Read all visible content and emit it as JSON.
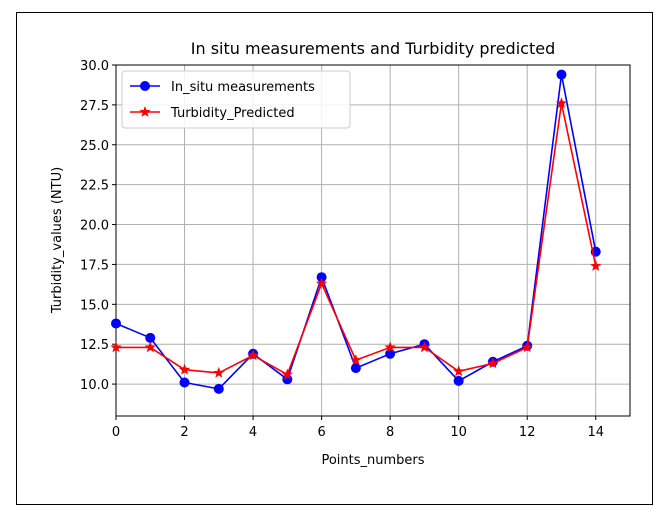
{
  "chart_data": {
    "type": "line",
    "title": "In situ measurements and Turbidity predicted",
    "xlabel": "Points_numbers",
    "ylabel": "Turbidity_values (NTU)",
    "xlim": [
      0,
      15
    ],
    "ylim": [
      8.0,
      30.0
    ],
    "xticks": [
      "0",
      "2",
      "4",
      "6",
      "8",
      "10",
      "12",
      "14"
    ],
    "yticks": [
      "10.0",
      "12.5",
      "15.0",
      "17.5",
      "20.0",
      "22.5",
      "25.0",
      "27.5",
      "30.0"
    ],
    "grid": true,
    "legend_position": "top-left",
    "x": [
      0,
      1,
      2,
      3,
      4,
      5,
      6,
      7,
      8,
      9,
      10,
      11,
      12,
      13,
      14
    ],
    "series": [
      {
        "name": "In_situ measurements",
        "color": "#0000ff",
        "marker": "circle",
        "values": [
          13.8,
          12.9,
          10.1,
          9.7,
          11.9,
          10.3,
          16.7,
          11.0,
          11.9,
          12.5,
          10.2,
          11.4,
          12.4,
          29.4,
          18.3
        ]
      },
      {
        "name": "Turbidity_Predicted",
        "color": "#ff0000",
        "marker": "star",
        "values": [
          12.3,
          12.3,
          10.9,
          10.7,
          11.8,
          10.6,
          16.3,
          11.5,
          12.3,
          12.3,
          10.8,
          11.3,
          12.3,
          27.6,
          17.4
        ]
      }
    ]
  }
}
